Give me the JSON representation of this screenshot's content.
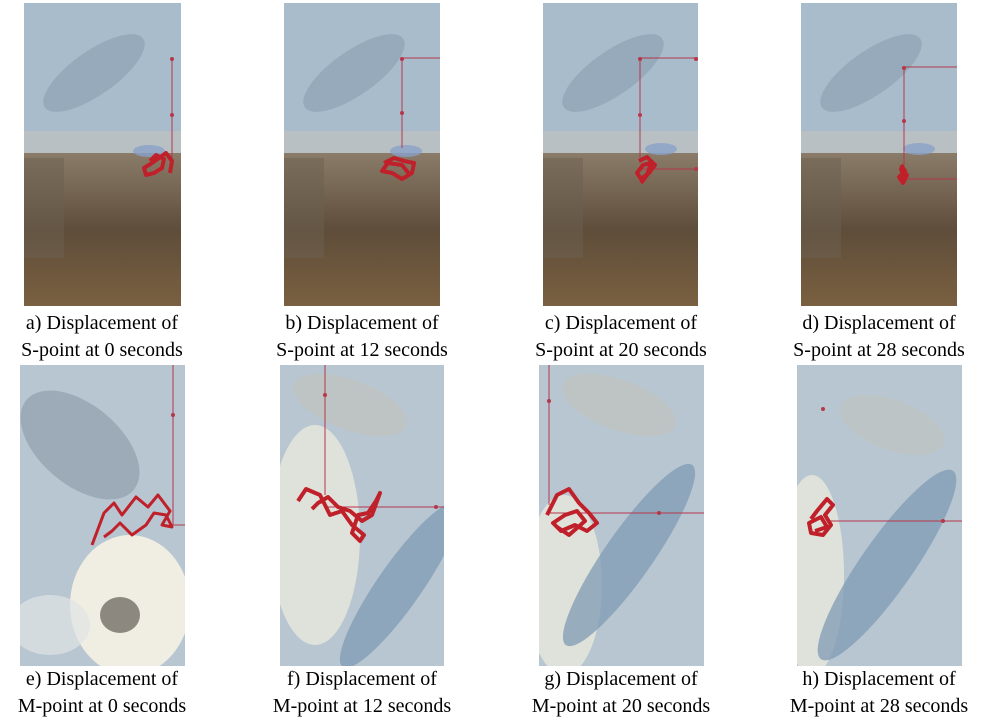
{
  "figure": {
    "top_row": [
      {
        "id": "a",
        "caption_line1": "a) Displacement of",
        "caption_line2": "S-point at 0 seconds"
      },
      {
        "id": "b",
        "caption_line1": "b) Displacement of",
        "caption_line2": "S-point at 12 seconds"
      },
      {
        "id": "c",
        "caption_line1": "c) Displacement of",
        "caption_line2": "S-point at 20 seconds"
      },
      {
        "id": "d",
        "caption_line1": "d) Displacement of",
        "caption_line2": "S-point at 28 seconds"
      }
    ],
    "bottom_row": [
      {
        "id": "e",
        "caption_line1": "e) Displacement of",
        "caption_line2": "M-point at 0 seconds"
      },
      {
        "id": "f",
        "caption_line1": "f) Displacement of",
        "caption_line2": "M-point at 12 seconds"
      },
      {
        "id": "g",
        "caption_line1": "g) Displacement of",
        "caption_line2": "M-point at 20 seconds"
      },
      {
        "id": "h",
        "caption_line1": "h) Displacement of",
        "caption_line2": "M-point at 28 seconds"
      }
    ]
  },
  "colors": {
    "trajectory": "#c0202a",
    "crosshair": "#b5374a",
    "sky_stone": "#a9bccb",
    "soil": "#6b5a44"
  }
}
